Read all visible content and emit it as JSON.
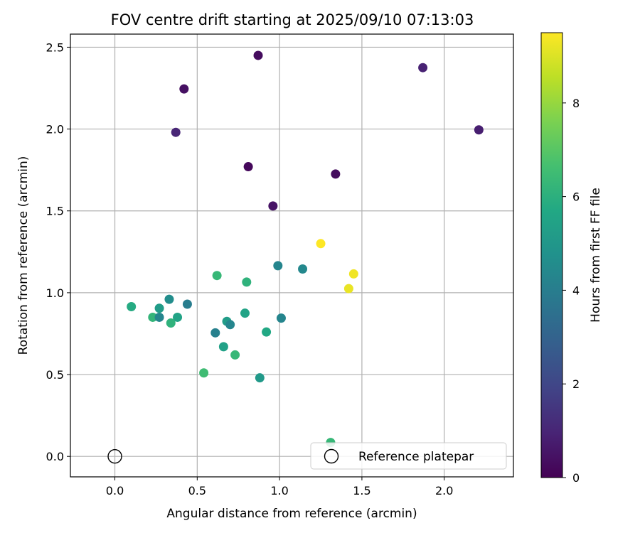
{
  "chart_data": {
    "type": "scatter",
    "title": "FOV centre drift starting at 2025/09/10 07:13:03",
    "xlabel": "Angular distance from reference (arcmin)",
    "ylabel": "Rotation from reference (arcmin)",
    "xlim": [
      -0.27,
      2.42
    ],
    "ylim": [
      -0.125,
      2.58
    ],
    "xticks": [
      0.0,
      0.5,
      1.0,
      1.5,
      2.0
    ],
    "xtick_labels": [
      "0.0",
      "0.5",
      "1.0",
      "1.5",
      "2.0"
    ],
    "yticks": [
      0.0,
      0.5,
      1.0,
      1.5,
      2.0,
      2.5
    ],
    "ytick_labels": [
      "0.0",
      "0.5",
      "1.0",
      "1.5",
      "2.0",
      "2.5"
    ],
    "grid": true,
    "colormap": "viridis",
    "colorbar": {
      "label": "Hours from first FF file",
      "range": [
        0,
        9.5
      ],
      "ticks": [
        0,
        2,
        4,
        6,
        8
      ],
      "tick_labels": [
        "0",
        "2",
        "4",
        "6",
        "8"
      ]
    },
    "legend": {
      "placement": "lower-right",
      "entries": [
        {
          "label": "Reference platepar",
          "marker": "open-circle"
        }
      ]
    },
    "reference_point": {
      "x": 0.0,
      "y": 0.0
    },
    "points": [
      {
        "x": 0.87,
        "y": 2.45,
        "hours": 0.3
      },
      {
        "x": 0.42,
        "y": 2.245,
        "hours": 0.4
      },
      {
        "x": 1.87,
        "y": 2.375,
        "hours": 0.9
      },
      {
        "x": 0.37,
        "y": 1.98,
        "hours": 1.0
      },
      {
        "x": 2.21,
        "y": 1.995,
        "hours": 0.8
      },
      {
        "x": 0.81,
        "y": 1.77,
        "hours": 0.2
      },
      {
        "x": 1.34,
        "y": 1.725,
        "hours": 0.3
      },
      {
        "x": 0.96,
        "y": 1.53,
        "hours": 0.5
      },
      {
        "x": 1.25,
        "y": 1.3,
        "hours": 9.5
      },
      {
        "x": 1.45,
        "y": 1.115,
        "hours": 9.3
      },
      {
        "x": 1.42,
        "y": 1.025,
        "hours": 9.2
      },
      {
        "x": 0.99,
        "y": 1.165,
        "hours": 4.3
      },
      {
        "x": 1.14,
        "y": 1.145,
        "hours": 4.4
      },
      {
        "x": 0.62,
        "y": 1.105,
        "hours": 6.3
      },
      {
        "x": 0.8,
        "y": 1.065,
        "hours": 6.1
      },
      {
        "x": 0.1,
        "y": 0.915,
        "hours": 5.8
      },
      {
        "x": 0.33,
        "y": 0.96,
        "hours": 4.6
      },
      {
        "x": 0.44,
        "y": 0.93,
        "hours": 4.0
      },
      {
        "x": 0.27,
        "y": 0.905,
        "hours": 5.2
      },
      {
        "x": 0.23,
        "y": 0.85,
        "hours": 6.2
      },
      {
        "x": 0.27,
        "y": 0.85,
        "hours": 4.3
      },
      {
        "x": 0.38,
        "y": 0.85,
        "hours": 5.5
      },
      {
        "x": 0.34,
        "y": 0.815,
        "hours": 6.1
      },
      {
        "x": 0.68,
        "y": 0.825,
        "hours": 5.2
      },
      {
        "x": 0.7,
        "y": 0.805,
        "hours": 4.3
      },
      {
        "x": 0.79,
        "y": 0.875,
        "hours": 5.5
      },
      {
        "x": 1.01,
        "y": 0.845,
        "hours": 4.3
      },
      {
        "x": 0.61,
        "y": 0.755,
        "hours": 4.1
      },
      {
        "x": 0.92,
        "y": 0.76,
        "hours": 5.7
      },
      {
        "x": 0.66,
        "y": 0.67,
        "hours": 5.4
      },
      {
        "x": 0.73,
        "y": 0.62,
        "hours": 6.3
      },
      {
        "x": 0.54,
        "y": 0.51,
        "hours": 6.5
      },
      {
        "x": 0.88,
        "y": 0.48,
        "hours": 5.1
      },
      {
        "x": 1.31,
        "y": 0.085,
        "hours": 6.3
      }
    ]
  }
}
